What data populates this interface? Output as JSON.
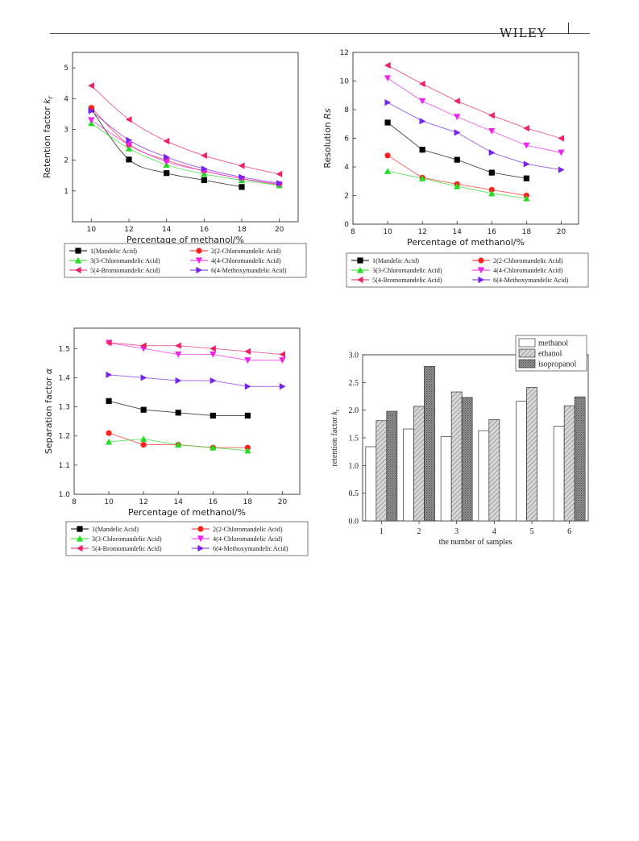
{
  "header": {
    "brand": "WILEY"
  },
  "chart_data": [
    {
      "id": "retention",
      "type": "line",
      "ylabel_main": "Retention factor ",
      "ylabel_sub": "k",
      "ylabel_subscript": "r",
      "xlabel": "Percentage of methanol/%",
      "xlim": [
        9,
        21
      ],
      "ylim": [
        0,
        5.5
      ],
      "xticks": [
        10,
        12,
        14,
        16,
        18,
        20
      ],
      "yticks": [
        1,
        2,
        3,
        4,
        5
      ],
      "series": [
        {
          "name": "1(Mandelic Acid)",
          "color": "#000000",
          "marker": "square",
          "x": [
            10,
            12,
            14,
            16,
            18
          ],
          "y": [
            3.65,
            2.02,
            1.58,
            1.35,
            1.13
          ]
        },
        {
          "name": "2(2-Chloromandelic Acid)",
          "color": "#ff2020",
          "marker": "circle",
          "x": [
            10,
            12,
            14,
            16,
            18,
            20
          ],
          "y": [
            3.7,
            2.5,
            2.0,
            1.65,
            1.4,
            1.2
          ]
        },
        {
          "name": "3(3-Chloromandelic Acid)",
          "color": "#22dd22",
          "marker": "triangle-up",
          "x": [
            10,
            12,
            14,
            16,
            18,
            20
          ],
          "y": [
            3.2,
            2.38,
            1.85,
            1.55,
            1.35,
            1.18
          ]
        },
        {
          "name": "4(4-Chloromandelic Acid)",
          "color": "#ee22ee",
          "marker": "triangle-down",
          "x": [
            10,
            12,
            14,
            16,
            18,
            20
          ],
          "y": [
            3.3,
            2.5,
            1.95,
            1.65,
            1.4,
            1.22
          ]
        },
        {
          "name": "5(4-Bromomandelic Acid)",
          "color": "#ee2266",
          "marker": "triangle-left",
          "x": [
            10,
            12,
            14,
            16,
            18,
            20
          ],
          "y": [
            4.42,
            3.32,
            2.62,
            2.15,
            1.82,
            1.55
          ]
        },
        {
          "name": "6(4-Methoxymandelic Acid)",
          "color": "#7722ee",
          "marker": "triangle-right",
          "x": [
            10,
            12,
            14,
            16,
            18,
            20
          ],
          "y": [
            3.6,
            2.65,
            2.1,
            1.72,
            1.45,
            1.25
          ]
        }
      ]
    },
    {
      "id": "resolution",
      "type": "line",
      "ylabel_main": "Resolution ",
      "ylabel_sub": "Rs",
      "ylabel_subscript": "",
      "xlabel": "Percentage of methanol/%",
      "xlim": [
        8,
        21
      ],
      "ylim": [
        0,
        12
      ],
      "xticks": [
        8,
        10,
        12,
        14,
        16,
        18,
        20
      ],
      "yticks": [
        0,
        2,
        4,
        6,
        8,
        10,
        12
      ],
      "series": [
        {
          "name": "1(Mandelic Acid)",
          "color": "#000000",
          "marker": "square",
          "x": [
            10,
            12,
            14,
            16,
            18
          ],
          "y": [
            7.1,
            5.2,
            4.5,
            3.6,
            3.2
          ]
        },
        {
          "name": "2(2-Chloromandelic Acid)",
          "color": "#ff2020",
          "marker": "circle",
          "x": [
            10,
            12,
            14,
            16,
            18
          ],
          "y": [
            4.8,
            3.25,
            2.8,
            2.4,
            2.0
          ]
        },
        {
          "name": "3(3-Chloromandelic Acid)",
          "color": "#22dd22",
          "marker": "triangle-up",
          "x": [
            10,
            12,
            14,
            16,
            18
          ],
          "y": [
            3.7,
            3.2,
            2.65,
            2.15,
            1.8
          ]
        },
        {
          "name": "4(4-Chloromandelic Acid)",
          "color": "#ee22ee",
          "marker": "triangle-down",
          "x": [
            10,
            12,
            14,
            16,
            18,
            20
          ],
          "y": [
            10.2,
            8.6,
            7.5,
            6.5,
            5.5,
            5.0
          ]
        },
        {
          "name": "5(4-Bromomandelic Acid)",
          "color": "#ee2266",
          "marker": "triangle-left",
          "x": [
            10,
            12,
            14,
            16,
            18,
            20
          ],
          "y": [
            11.1,
            9.8,
            8.6,
            7.6,
            6.7,
            6.0
          ]
        },
        {
          "name": "6(4-Methoxymandelic Acid)",
          "color": "#7722ee",
          "marker": "triangle-right",
          "x": [
            10,
            12,
            14,
            16,
            18,
            20
          ],
          "y": [
            8.5,
            7.2,
            6.4,
            5.0,
            4.2,
            3.8
          ]
        }
      ]
    },
    {
      "id": "separation",
      "type": "line",
      "ylabel_main": "Separation factor ",
      "ylabel_sub": "α",
      "ylabel_subscript": "",
      "xlabel": "Percentage of methanol/%",
      "xlim": [
        8,
        21
      ],
      "ylim": [
        1.0,
        1.57
      ],
      "xticks": [
        8,
        10,
        12,
        14,
        16,
        18,
        20
      ],
      "yticks": [
        1.0,
        1.1,
        1.2,
        1.3,
        1.4,
        1.5
      ],
      "series": [
        {
          "name": "1(Mandelic Acid)",
          "color": "#000000",
          "marker": "square",
          "x": [
            10,
            12,
            14,
            16,
            18
          ],
          "y": [
            1.32,
            1.29,
            1.28,
            1.27,
            1.27
          ]
        },
        {
          "name": "2(2-Chloromandelic Acid)",
          "color": "#ff2020",
          "marker": "circle",
          "x": [
            10,
            12,
            14,
            16,
            18
          ],
          "y": [
            1.21,
            1.17,
            1.17,
            1.16,
            1.16
          ]
        },
        {
          "name": "3(3-Chloromandelic Acid)",
          "color": "#22dd22",
          "marker": "triangle-up",
          "x": [
            10,
            12,
            14,
            16,
            18
          ],
          "y": [
            1.18,
            1.19,
            1.17,
            1.16,
            1.15
          ]
        },
        {
          "name": "4(4-Chloromandelic Acid)",
          "color": "#ee22ee",
          "marker": "triangle-down",
          "x": [
            10,
            12,
            14,
            16,
            18,
            20
          ],
          "y": [
            1.52,
            1.5,
            1.48,
            1.48,
            1.46,
            1.46
          ]
        },
        {
          "name": "5(4-Bromomandelic Acid)",
          "color": "#ee2266",
          "marker": "triangle-left",
          "x": [
            10,
            12,
            14,
            16,
            18,
            20
          ],
          "y": [
            1.52,
            1.51,
            1.51,
            1.5,
            1.49,
            1.48
          ]
        },
        {
          "name": "6(4-Methoxymandelic Acid)",
          "color": "#7722ee",
          "marker": "triangle-right",
          "x": [
            10,
            12,
            14,
            16,
            18,
            20
          ],
          "y": [
            1.41,
            1.4,
            1.39,
            1.39,
            1.37,
            1.37
          ]
        }
      ]
    },
    {
      "id": "solvent",
      "type": "bar",
      "ylabel_main": "retention factor ",
      "ylabel_sub": "k",
      "ylabel_subscript": "r",
      "xlabel": "the number of samples",
      "categories": [
        "1",
        "2",
        "3",
        "4",
        "5",
        "6"
      ],
      "ylim": [
        0,
        3.0
      ],
      "yticks": [
        "0.0",
        "0.5",
        "1.0",
        "1.5",
        "2.0",
        "2.5",
        "3.0"
      ],
      "series": [
        {
          "name": "methanol",
          "pattern": "plain",
          "values": [
            1.34,
            1.66,
            1.52,
            1.63,
            2.16,
            1.71
          ]
        },
        {
          "name": "ethanol",
          "pattern": "hatch",
          "values": [
            1.81,
            2.07,
            2.33,
            1.83,
            2.41,
            2.08
          ]
        },
        {
          "name": "isopropanol",
          "pattern": "cross",
          "values": [
            1.98,
            2.79,
            2.23,
            null,
            null,
            2.24
          ]
        }
      ]
    }
  ]
}
